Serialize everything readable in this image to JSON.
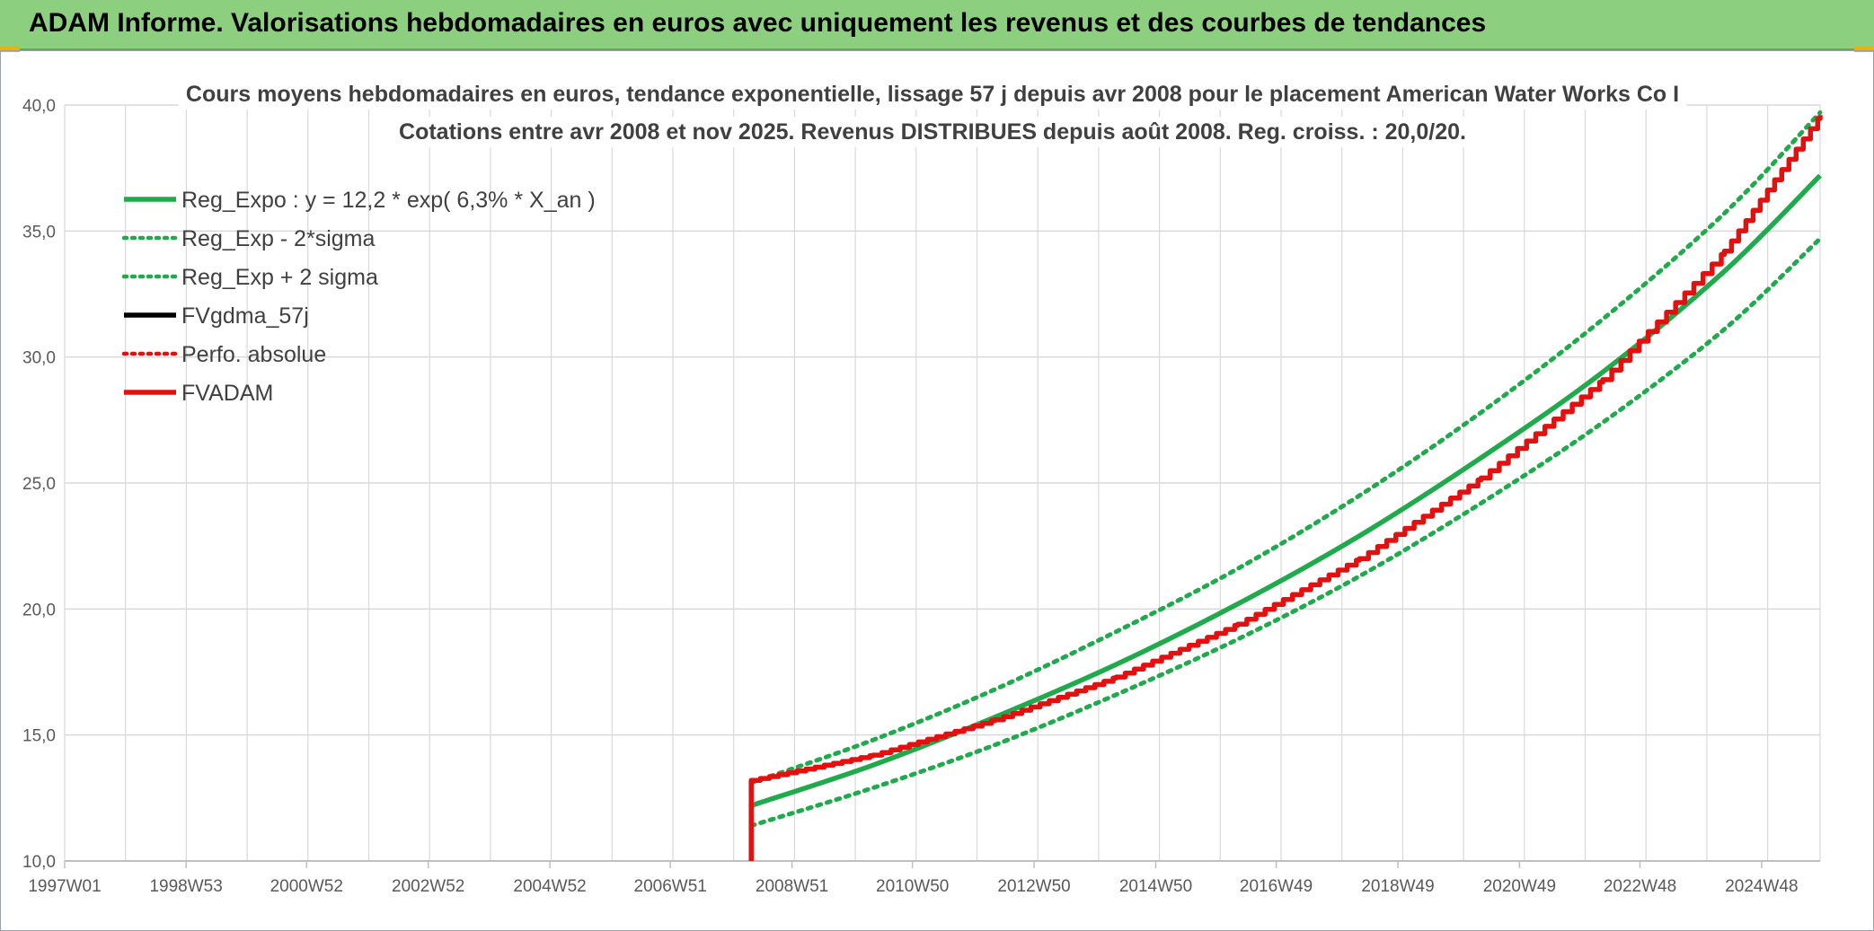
{
  "banner": {
    "title": "ADAM Informe. Valorisations hebdomadaires en euros avec uniquement les revenus et des courbes de tendances"
  },
  "colors": {
    "banner": "#8ccf7e",
    "trend": "#1faa4b",
    "fvadam": "#e31010",
    "gdma": "#000000",
    "grid": "#d9d9d9"
  },
  "chart_data": {
    "type": "line",
    "title": "Cours moyens hebdomadaires en euros, tendance exponentielle, lissage 57 j depuis avr 2008 pour le placement American Water Works Co I",
    "subtitle": "Cotations entre avr 2008 et nov 2025. Revenus DISTRIBUES depuis août 2008. Reg. croiss. : 20,0/20.",
    "xlabel": "",
    "ylabel": "",
    "x_ticks": [
      "1997W01",
      "1998W53",
      "2000W52",
      "2002W52",
      "2004W52",
      "2006W51",
      "2008W51",
      "2010W50",
      "2012W50",
      "2014W50",
      "2016W49",
      "2018W49",
      "2020W49",
      "2022W48",
      "2024W48"
    ],
    "x_range": [
      "1997W01",
      "2025W46"
    ],
    "y_ticks": [
      "10,0",
      "15,0",
      "20,0",
      "25,0",
      "30,0",
      "35,0",
      "40,0"
    ],
    "ylim": [
      10,
      40
    ],
    "grid": true,
    "legend_position": "top-left",
    "legend": [
      {
        "label": "Reg_Expo : y = 12,2 * exp( 6,3% *  X_an )",
        "style": "solid",
        "color": "#1faa4b"
      },
      {
        "label": "Reg_Exp - 2*sigma",
        "style": "dotted",
        "color": "#1faa4b"
      },
      {
        "label": "Reg_Exp + 2 sigma",
        "style": "dotted",
        "color": "#1faa4b"
      },
      {
        "label": "FVgdma_57j",
        "style": "solid",
        "color": "#000000"
      },
      {
        "label": "Perfo. absolue",
        "style": "dotted",
        "color": "#e31010"
      },
      {
        "label": "FVADAM",
        "style": "solid",
        "color": "#e31010"
      }
    ],
    "series": [
      {
        "name": "Reg_Expo : y = 12,2 * exp( 6,3% *  X_an )",
        "x": [
          "2008W16",
          "2010W16",
          "2012W16",
          "2014W16",
          "2016W16",
          "2018W16",
          "2020W16",
          "2022W16",
          "2024W16",
          "2025W46"
        ],
        "y": [
          12.2,
          13.8,
          15.7,
          17.8,
          20.2,
          22.9,
          26.0,
          29.4,
          33.4,
          37.2
        ]
      },
      {
        "name": "Reg_Exp - 2*sigma",
        "x": [
          "2008W16",
          "2010W16",
          "2012W16",
          "2014W16",
          "2016W16",
          "2018W16",
          "2020W16",
          "2022W16",
          "2024W16",
          "2025W46"
        ],
        "y": [
          11.4,
          12.9,
          14.6,
          16.6,
          18.8,
          21.3,
          24.2,
          27.4,
          31.1,
          34.7
        ]
      },
      {
        "name": "Reg_Exp + 2 sigma",
        "x": [
          "2008W16",
          "2010W16",
          "2012W16",
          "2014W16",
          "2016W16",
          "2018W16",
          "2020W16",
          "2022W16",
          "2024W16",
          "2025W46"
        ],
        "y": [
          13.1,
          14.8,
          16.8,
          19.1,
          21.6,
          24.5,
          27.8,
          31.5,
          35.7,
          39.7
        ]
      },
      {
        "name": "FVADAM",
        "x": [
          "2008W16",
          "2008W16",
          "2010W16",
          "2012W16",
          "2014W16",
          "2016W16",
          "2018W16",
          "2020W16",
          "2022W16",
          "2024W16",
          "2025W46"
        ],
        "y": [
          10.0,
          13.2,
          14.2,
          15.6,
          17.3,
          19.4,
          22.0,
          25.2,
          29.1,
          34.2,
          39.6
        ]
      }
    ]
  }
}
